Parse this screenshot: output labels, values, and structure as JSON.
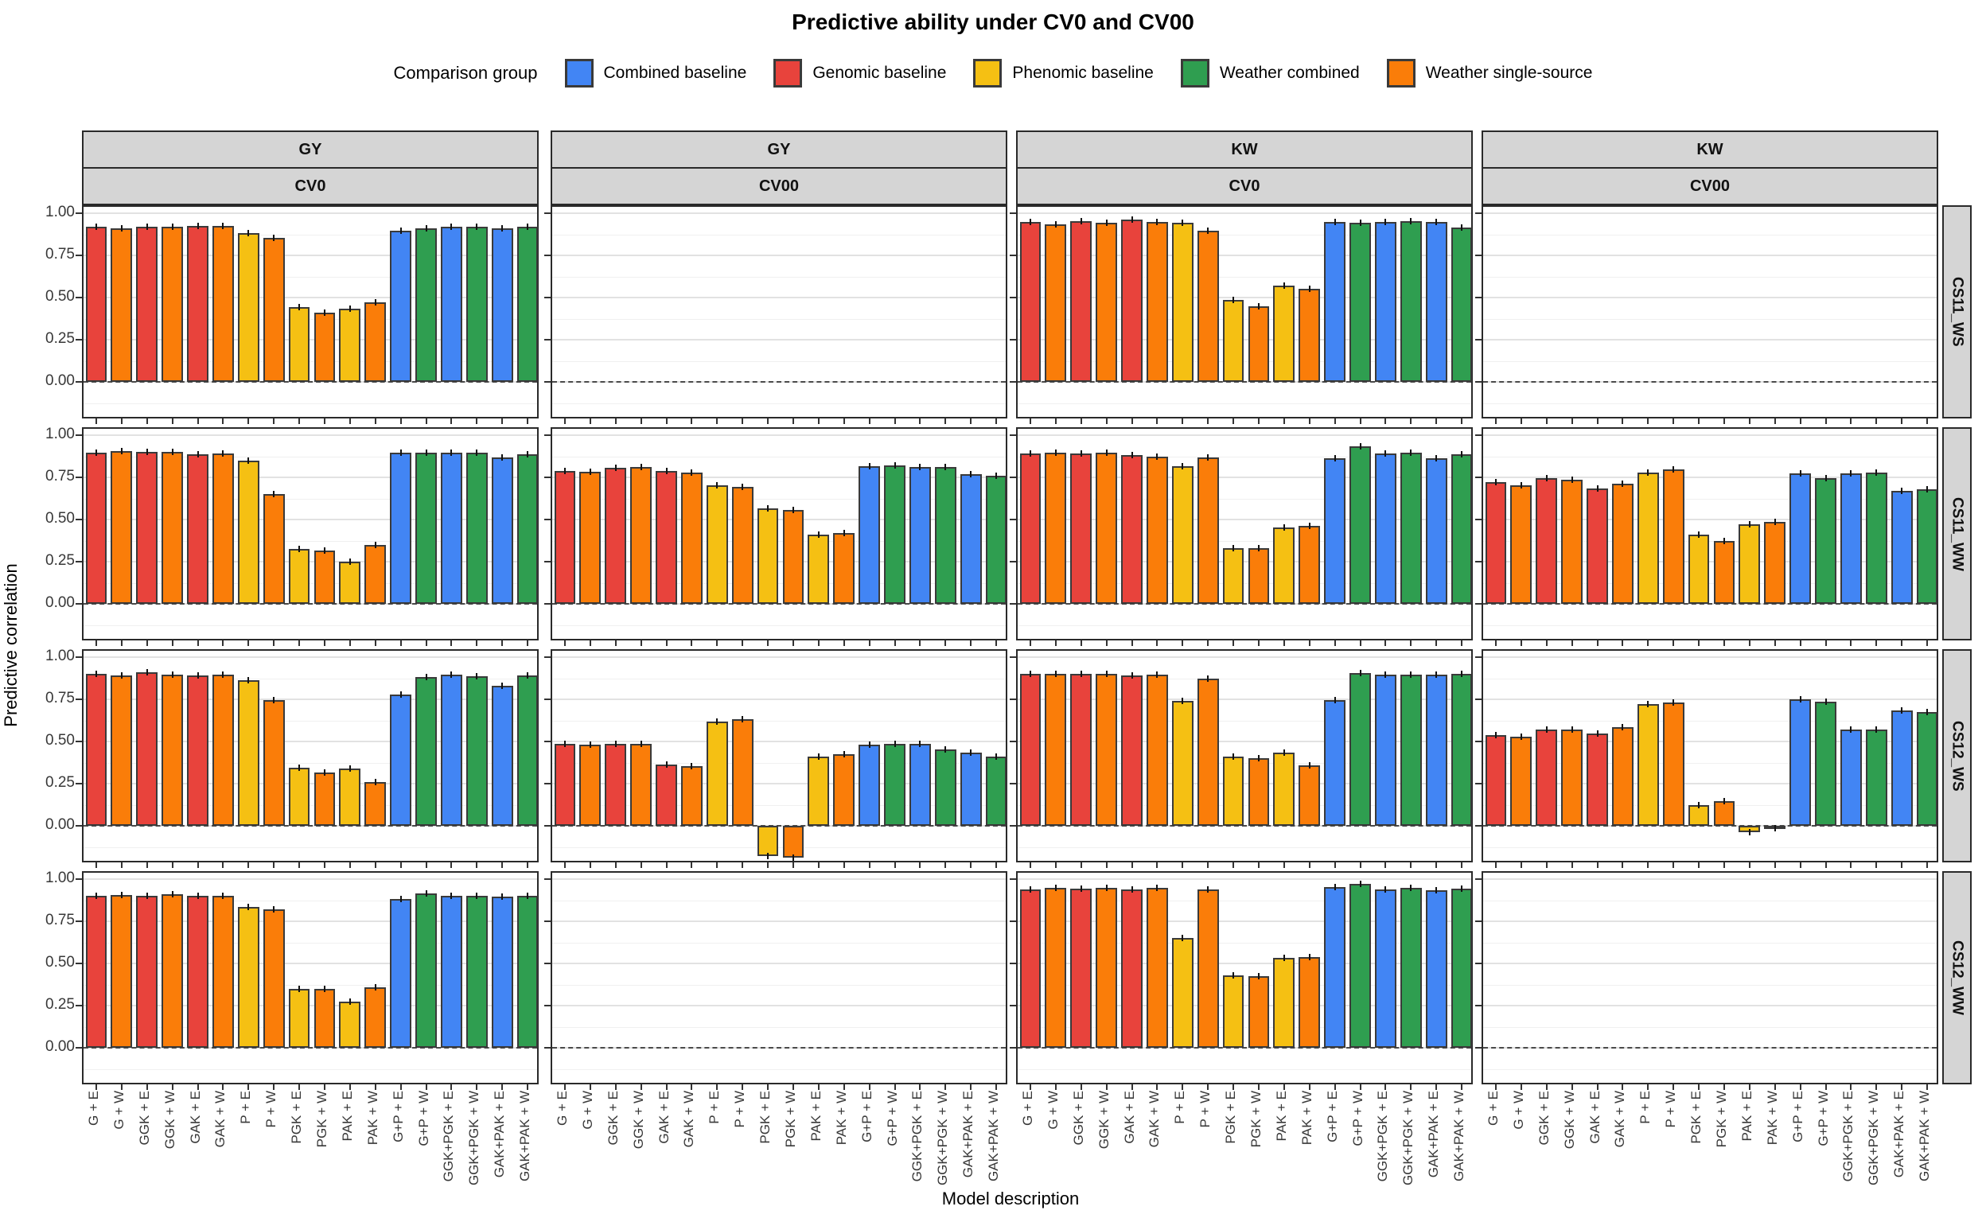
{
  "title": "Predictive ability under CV0 and CV00",
  "legend": {
    "title": "Comparison group",
    "entries": [
      {
        "key": "combined",
        "label": "Combined baseline",
        "color": "#4285F4"
      },
      {
        "key": "genomic",
        "label": "Genomic baseline",
        "color": "#E8433C"
      },
      {
        "key": "phenomic",
        "label": "Phenomic baseline",
        "color": "#F5C013"
      },
      {
        "key": "weather_combined",
        "label": "Weather combined",
        "color": "#2F9E50"
      },
      {
        "key": "weather_single",
        "label": "Weather single-source",
        "color": "#FA7D09"
      }
    ]
  },
  "axes": {
    "y_label": "Predictive correlation",
    "x_label": "Model description",
    "y_ticks": [
      "1.00",
      "0.75",
      "0.50",
      "0.25",
      "0.00"
    ]
  },
  "facets": {
    "col_traits": [
      "GY",
      "GY",
      "KW",
      "KW"
    ],
    "col_cv": [
      "CV0",
      "CV00",
      "CV0",
      "CV00"
    ],
    "rows": [
      "CS11_WS",
      "CS11_WW",
      "CS12_WS",
      "CS12_WW"
    ]
  },
  "chart_data": {
    "type": "bar",
    "title": "Predictive ability under CV0 and CV00",
    "xlabel": "Model description",
    "ylabel": "Predictive correlation",
    "ylim": [
      -0.25,
      1.04
    ],
    "y_major_ticks": [
      1.0,
      0.75,
      0.5,
      0.25,
      0.0
    ],
    "y_minor_ticks": [
      0.875,
      0.625,
      0.375,
      0.125,
      -0.125
    ],
    "grid": "major+minor",
    "zero_line": "dashed",
    "legend_position": "top",
    "categories": [
      "G + E",
      "G + W",
      "GGK + E",
      "GGK + W",
      "GAK + E",
      "GAK + W",
      "P + E",
      "P + W",
      "PGK + E",
      "PGK + W",
      "PAK + E",
      "PAK + W",
      "G+P + E",
      "G+P + W",
      "GGK+PGK + E",
      "GGK+PGK + W",
      "GAK+PAK + E",
      "GAK+PAK + W"
    ],
    "bar_groups": [
      "genomic",
      "weather_single",
      "genomic",
      "weather_single",
      "genomic",
      "weather_single",
      "phenomic",
      "weather_single",
      "phenomic",
      "weather_single",
      "phenomic",
      "weather_single",
      "combined",
      "weather_combined",
      "combined",
      "weather_combined",
      "combined",
      "weather_combined"
    ],
    "group_colors": {
      "combined": "#4285F4",
      "genomic": "#E8433C",
      "phenomic": "#F5C013",
      "weather_combined": "#2F9E50",
      "weather_single": "#FA7D09"
    },
    "panels": [
      {
        "row": "CS11_WS",
        "trait": "GY",
        "cv": "CV0",
        "values": [
          0.92,
          0.91,
          0.92,
          0.92,
          0.925,
          0.925,
          0.88,
          0.855,
          0.445,
          0.41,
          0.435,
          0.47,
          0.895,
          0.91,
          0.92,
          0.92,
          0.91,
          0.92
        ]
      },
      {
        "row": "CS11_WS",
        "trait": "GY",
        "cv": "CV00",
        "values": null
      },
      {
        "row": "CS11_WS",
        "trait": "KW",
        "cv": "CV0",
        "values": [
          0.95,
          0.935,
          0.955,
          0.945,
          0.96,
          0.95,
          0.945,
          0.895,
          0.485,
          0.45,
          0.57,
          0.55,
          0.95,
          0.945,
          0.95,
          0.955,
          0.95,
          0.915
        ]
      },
      {
        "row": "CS11_WS",
        "trait": "KW",
        "cv": "CV00",
        "values": null
      },
      {
        "row": "CS11_WW",
        "trait": "GY",
        "cv": "CV0",
        "values": [
          0.895,
          0.905,
          0.9,
          0.9,
          0.885,
          0.89,
          0.85,
          0.65,
          0.325,
          0.315,
          0.25,
          0.35,
          0.895,
          0.895,
          0.895,
          0.895,
          0.87,
          0.885
        ]
      },
      {
        "row": "CS11_WW",
        "trait": "GY",
        "cv": "CV00",
        "values": [
          0.79,
          0.785,
          0.805,
          0.81,
          0.79,
          0.78,
          0.705,
          0.695,
          0.565,
          0.555,
          0.41,
          0.42,
          0.815,
          0.82,
          0.81,
          0.81,
          0.77,
          0.76
        ]
      },
      {
        "row": "CS11_WW",
        "trait": "KW",
        "cv": "CV0",
        "values": [
          0.89,
          0.895,
          0.89,
          0.895,
          0.88,
          0.875,
          0.815,
          0.87,
          0.33,
          0.33,
          0.455,
          0.46,
          0.865,
          0.935,
          0.89,
          0.895,
          0.865,
          0.885
        ]
      },
      {
        "row": "CS11_WW",
        "trait": "KW",
        "cv": "CV00",
        "values": [
          0.72,
          0.705,
          0.745,
          0.735,
          0.685,
          0.71,
          0.78,
          0.795,
          0.41,
          0.375,
          0.47,
          0.485,
          0.775,
          0.745,
          0.775,
          0.78,
          0.67,
          0.68
        ]
      },
      {
        "row": "CS12_WS",
        "trait": "GY",
        "cv": "CV0",
        "values": [
          0.9,
          0.89,
          0.91,
          0.895,
          0.89,
          0.895,
          0.865,
          0.745,
          0.345,
          0.315,
          0.34,
          0.26,
          0.78,
          0.88,
          0.895,
          0.885,
          0.83,
          0.89
        ]
      },
      {
        "row": "CS12_WS",
        "trait": "GY",
        "cv": "CV00",
        "values": [
          0.485,
          0.48,
          0.485,
          0.485,
          0.365,
          0.355,
          0.62,
          0.63,
          -0.18,
          -0.19,
          0.41,
          0.425,
          0.48,
          0.485,
          0.485,
          0.455,
          0.435,
          0.41
        ]
      },
      {
        "row": "CS12_WS",
        "trait": "KW",
        "cv": "CV0",
        "values": [
          0.9,
          0.9,
          0.9,
          0.9,
          0.89,
          0.895,
          0.74,
          0.875,
          0.41,
          0.4,
          0.435,
          0.36,
          0.745,
          0.905,
          0.895,
          0.895,
          0.895,
          0.9
        ]
      },
      {
        "row": "CS12_WS",
        "trait": "KW",
        "cv": "CV00",
        "values": [
          0.54,
          0.53,
          0.57,
          0.57,
          0.545,
          0.585,
          0.72,
          0.73,
          0.125,
          0.145,
          -0.04,
          -0.015,
          0.75,
          0.735,
          0.57,
          0.57,
          0.685,
          0.675
        ]
      },
      {
        "row": "CS12_WW",
        "trait": "GY",
        "cv": "CV0",
        "values": [
          0.9,
          0.905,
          0.9,
          0.91,
          0.9,
          0.9,
          0.835,
          0.82,
          0.35,
          0.35,
          0.275,
          0.36,
          0.88,
          0.915,
          0.9,
          0.9,
          0.895,
          0.9
        ]
      },
      {
        "row": "CS12_WW",
        "trait": "GY",
        "cv": "CV00",
        "values": null
      },
      {
        "row": "CS12_WW",
        "trait": "KW",
        "cv": "CV0",
        "values": [
          0.94,
          0.95,
          0.945,
          0.95,
          0.94,
          0.95,
          0.65,
          0.94,
          0.43,
          0.425,
          0.535,
          0.54,
          0.955,
          0.97,
          0.94,
          0.95,
          0.935,
          0.945
        ]
      },
      {
        "row": "CS12_WW",
        "trait": "KW",
        "cv": "CV00",
        "values": null
      }
    ]
  }
}
